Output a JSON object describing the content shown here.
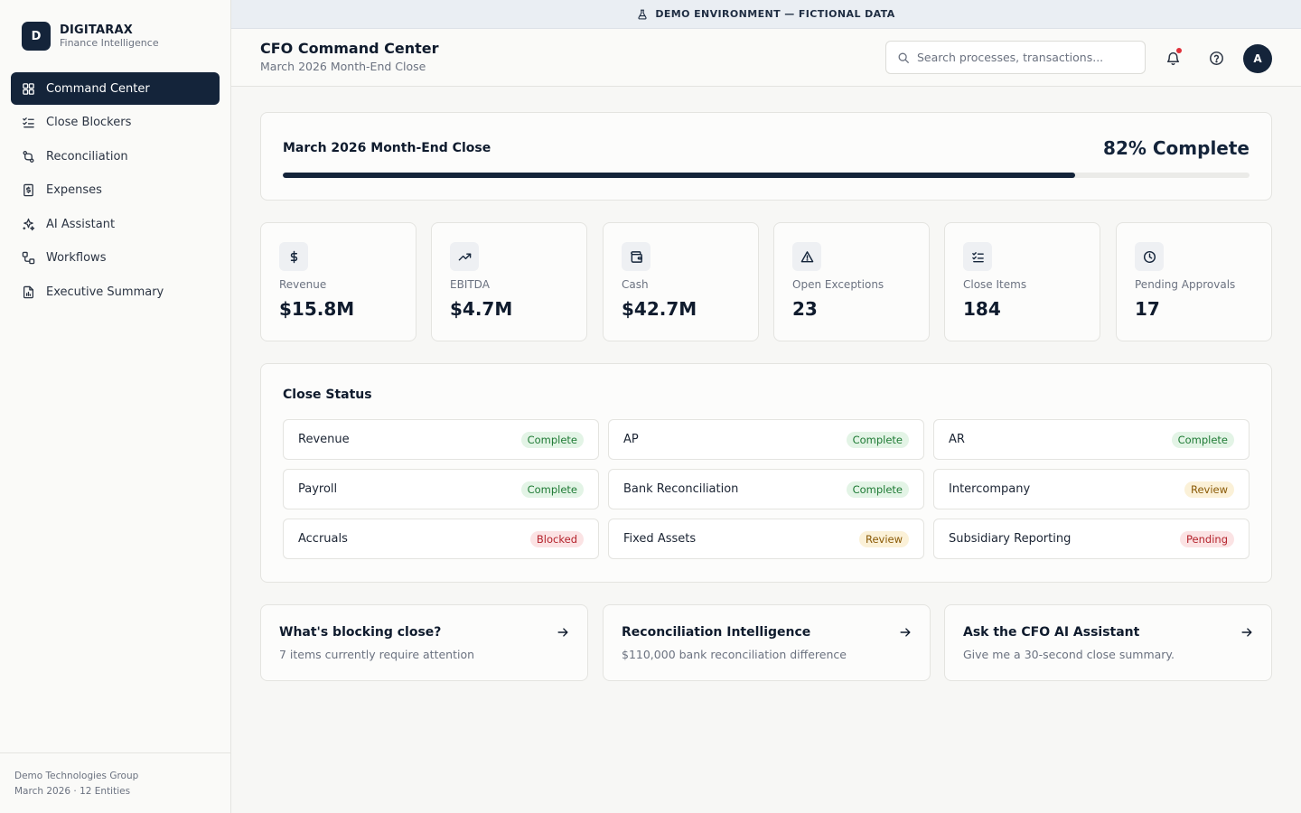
{
  "brand": {
    "logo_letter": "D",
    "name": "DIGITARAX",
    "tagline": "Finance Intelligence"
  },
  "sidebar": {
    "items": [
      {
        "label": "Command Center",
        "icon": "grid-icon",
        "active": true
      },
      {
        "label": "Close Blockers",
        "icon": "checklist-icon"
      },
      {
        "label": "Reconciliation",
        "icon": "git-compare-icon"
      },
      {
        "label": "Expenses",
        "icon": "receipt-icon"
      },
      {
        "label": "AI Assistant",
        "icon": "sparkles-icon"
      },
      {
        "label": "Workflows",
        "icon": "workflow-icon"
      },
      {
        "label": "Executive Summary",
        "icon": "file-chart-icon"
      }
    ],
    "footer": {
      "org": "Demo Technologies Group",
      "period": "March 2026 · 12 Entities"
    }
  },
  "banner": {
    "text": "DEMO ENVIRONMENT — FICTIONAL DATA",
    "icon": "flask-icon"
  },
  "header": {
    "title": "CFO Command Center",
    "subtitle": "March 2026 Month-End Close",
    "search_placeholder": "Search processes, transactions...",
    "avatar_letter": "A"
  },
  "progress": {
    "title": "March 2026 Month-End Close",
    "percent_label": "82% Complete",
    "fraction": 0.82
  },
  "kpis": [
    {
      "label": "Revenue",
      "value": "$15.8M",
      "icon": "dollar-icon"
    },
    {
      "label": "EBITDA",
      "value": "$4.7M",
      "icon": "trending-up-icon"
    },
    {
      "label": "Cash",
      "value": "$42.7M",
      "icon": "wallet-icon"
    },
    {
      "label": "Open Exceptions",
      "value": "23",
      "icon": "alert-triangle-icon"
    },
    {
      "label": "Close Items",
      "value": "184",
      "icon": "checklist-icon"
    },
    {
      "label": "Pending Approvals",
      "value": "17",
      "icon": "clock-icon"
    }
  ],
  "close_status": {
    "title": "Close Status",
    "items": [
      {
        "name": "Revenue",
        "status": "Complete"
      },
      {
        "name": "AP",
        "status": "Complete"
      },
      {
        "name": "AR",
        "status": "Complete"
      },
      {
        "name": "Payroll",
        "status": "Complete"
      },
      {
        "name": "Bank Reconciliation",
        "status": "Complete"
      },
      {
        "name": "Intercompany",
        "status": "Review"
      },
      {
        "name": "Accruals",
        "status": "Blocked"
      },
      {
        "name": "Fixed Assets",
        "status": "Review"
      },
      {
        "name": "Subsidiary Reporting",
        "status": "Pending"
      }
    ]
  },
  "actions": [
    {
      "title": "What's blocking close?",
      "subtitle": "7 items currently require attention"
    },
    {
      "title": "Reconciliation Intelligence",
      "subtitle": "$110,000 bank reconciliation difference"
    },
    {
      "title": "Ask the CFO AI Assistant",
      "subtitle": "Give me a 30-second close summary."
    }
  ],
  "colors": {
    "primary": "#14243a",
    "complete": "#1e7a34",
    "review": "#8a5a06",
    "blocked": "#b4232c",
    "notification": "#e0303a"
  }
}
